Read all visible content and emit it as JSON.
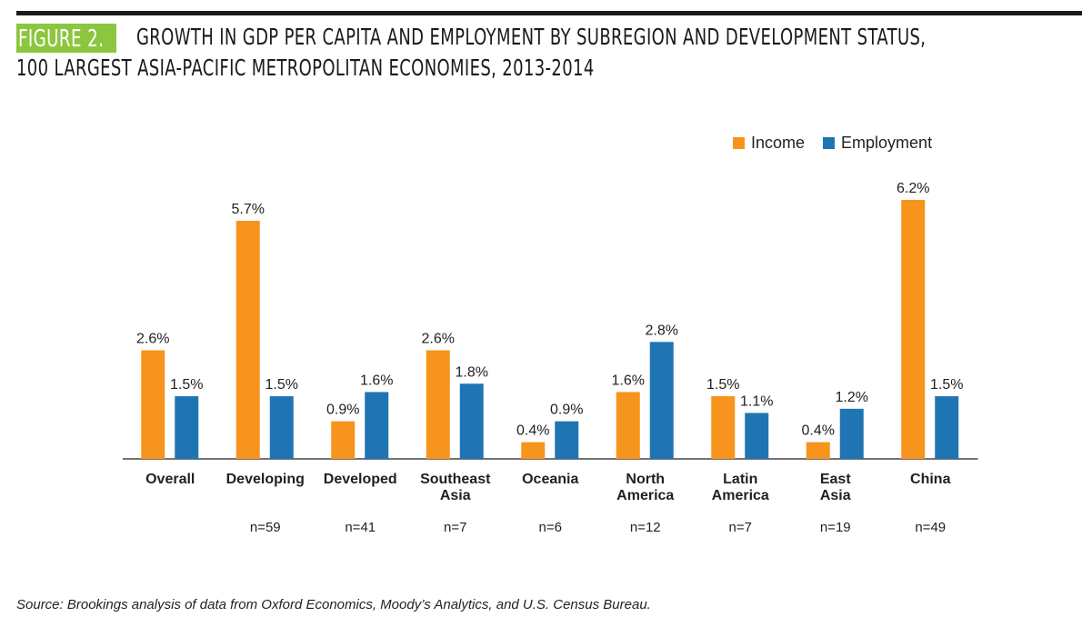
{
  "figure": {
    "label": "FIGURE 2.",
    "title_line1": "GROWTH IN GDP PER CAPITA AND EMPLOYMENT BY SUBREGION AND DEVELOPMENT STATUS,",
    "title_line2": "100 LARGEST ASIA-PACIFIC METROPOLITAN ECONOMIES, 2013-2014"
  },
  "colors": {
    "income": "#f7941d",
    "employment": "#1f75b3",
    "tag": "#8cc63f"
  },
  "source": "Source: Brookings analysis of data from Oxford Economics, Moody’s Analytics, and U.S. Census Bureau.",
  "chart_data": {
    "type": "bar",
    "categories": [
      [
        "Overall"
      ],
      [
        "Developing"
      ],
      [
        "Developed"
      ],
      [
        "Southeast",
        "Asia"
      ],
      [
        "Oceania"
      ],
      [
        "North",
        "America"
      ],
      [
        "Latin",
        "America"
      ],
      [
        "East",
        "Asia"
      ],
      [
        "China"
      ]
    ],
    "n_labels": [
      "",
      "n=59",
      "n=41",
      "n=7",
      "n=6",
      "n=12",
      "n=7",
      "n=19",
      "n=49"
    ],
    "series": [
      {
        "name": "Income",
        "values": [
          2.6,
          5.7,
          0.9,
          2.6,
          0.4,
          1.6,
          1.5,
          0.4,
          6.2
        ],
        "labels": [
          "2.6%",
          "5.7%",
          "0.9%",
          "2.6%",
          "0.4%",
          "1.6%",
          "1.5%",
          "0.4%",
          "6.2%"
        ]
      },
      {
        "name": "Employment",
        "values": [
          1.5,
          1.5,
          1.6,
          1.8,
          0.9,
          2.8,
          1.1,
          1.2,
          1.5
        ],
        "labels": [
          "1.5%",
          "1.5%",
          "1.6%",
          "1.8%",
          "0.9%",
          "2.8%",
          "1.1%",
          "1.2%",
          "1.5%"
        ]
      }
    ],
    "ylim": [
      0,
      6.2
    ],
    "legend_position": "top-right",
    "grid": false
  }
}
